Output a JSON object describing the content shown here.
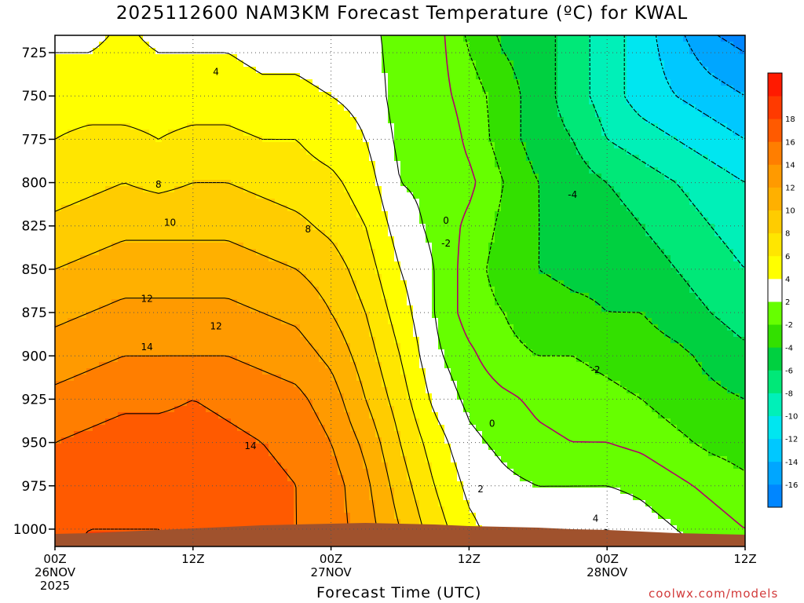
{
  "chart_data": {
    "type": "heatmap",
    "title": "2025112600 NAM3KM Forecast Temperature (ºC) for KWAL",
    "xlabel": "Forecast Time (UTC)",
    "ylabel": "",
    "source": "coolwx.com/models",
    "y_axis": {
      "range": [
        715,
        1010
      ],
      "inverted": true,
      "ticks": [
        725,
        750,
        775,
        800,
        825,
        850,
        875,
        900,
        925,
        950,
        975,
        1000
      ],
      "tick_labels": [
        "725",
        "750",
        "775",
        "800",
        "825",
        "850",
        "875",
        "900",
        "925",
        "950",
        "975",
        "1000"
      ]
    },
    "x_axis": {
      "range_hours": [
        0,
        60
      ],
      "ticks": [
        {
          "hour": 0,
          "line1": "00Z",
          "line2": "26NOV",
          "line3": "2025"
        },
        {
          "hour": 12,
          "line1": "12Z",
          "line2": "",
          "line3": ""
        },
        {
          "hour": 24,
          "line1": "00Z",
          "line2": "27NOV",
          "line3": ""
        },
        {
          "hour": 36,
          "line1": "12Z",
          "line2": "",
          "line3": ""
        },
        {
          "hour": 48,
          "line1": "00Z",
          "line2": "28NOV",
          "line3": ""
        },
        {
          "hour": 60,
          "line1": "12Z",
          "line2": "",
          "line3": ""
        }
      ]
    },
    "colorbar": {
      "levels": [
        -18,
        -16,
        -14,
        -12,
        -10,
        -8,
        -6,
        -4,
        -2,
        2,
        4,
        6,
        8,
        10,
        12,
        14,
        16,
        18,
        20
      ],
      "colors": [
        "#0086ff",
        "#00a6ff",
        "#00c8ff",
        "#00e6f0",
        "#00f0b8",
        "#00e878",
        "#00d040",
        "#33e000",
        "#66ff00",
        "#ffffff",
        "#ffff00",
        "#ffe600",
        "#ffcc00",
        "#ffb000",
        "#ff9a00",
        "#ff7e00",
        "#ff5a00",
        "#ff3a00",
        "#ff1a00"
      ],
      "labels": [
        "-16",
        "-14",
        "-12",
        "-10",
        "-8",
        "-6",
        "-4",
        "-2",
        "2",
        "4",
        "6",
        "8",
        "10",
        "12",
        "14",
        "16",
        "18"
      ]
    },
    "hours": [
      0,
      3,
      6,
      9,
      12,
      15,
      18,
      21,
      24,
      27,
      30,
      33,
      36,
      39,
      42,
      45,
      48,
      51,
      54,
      57,
      60
    ],
    "pressure_levels": [
      725,
      750,
      775,
      800,
      825,
      850,
      875,
      900,
      925,
      950,
      975,
      1000
    ],
    "temperature": [
      [
        4,
        4,
        4.5,
        4,
        4,
        4,
        3.5,
        3.5,
        3,
        3,
        1,
        1,
        -2,
        -4,
        -5,
        -7,
        -9,
        -11,
        -13,
        -15,
        -16
      ],
      [
        5,
        5,
        5,
        5,
        5,
        5,
        4.5,
        4.5,
        4,
        3.5,
        1,
        1,
        -1,
        -3,
        -5,
        -7,
        -9,
        -11,
        -12,
        -13,
        -14
      ],
      [
        6,
        6.5,
        6.5,
        6,
        6.5,
        6.5,
        6,
        6,
        5,
        4,
        1.5,
        2,
        -0.5,
        -3,
        -5,
        -6,
        -8,
        -9,
        -10,
        -11,
        -12
      ],
      [
        7,
        7.5,
        8,
        7.5,
        8,
        8,
        7.5,
        7,
        6.5,
        5,
        2,
        1.5,
        0.5,
        -2,
        -4,
        -5,
        -6,
        -7,
        -8,
        -9,
        -10
      ],
      [
        8.5,
        9,
        9.5,
        9.5,
        9.5,
        9.5,
        9,
        8.5,
        7.5,
        6,
        3,
        1.5,
        -0.5,
        -2.5,
        -4,
        -4.5,
        -5,
        -6,
        -7,
        -8,
        -9
      ],
      [
        10,
        10.5,
        11,
        11,
        11,
        11,
        10.5,
        10,
        9,
        7,
        4,
        2,
        -1,
        -3,
        -4,
        -4.5,
        -4.5,
        -5,
        -6,
        -7,
        -8
      ],
      [
        11.5,
        12,
        12.5,
        12.5,
        12.5,
        12.5,
        12,
        11.5,
        10,
        8,
        5,
        2,
        -1,
        -2,
        -3,
        -3.5,
        -4,
        -4,
        -5,
        -6,
        -7
      ],
      [
        13,
        13.5,
        14,
        14,
        14,
        14,
        13.5,
        13,
        11.5,
        9,
        6,
        2.5,
        0.5,
        -1.5,
        -2,
        -2,
        -2.5,
        -3,
        -3.5,
        -4.5,
        -5.5
      ],
      [
        14.5,
        15,
        15.5,
        15.5,
        16,
        15.5,
        15,
        14.5,
        13,
        10,
        7,
        3.5,
        1.5,
        0.5,
        -0.5,
        -1,
        -1.5,
        -2,
        -3,
        -3.5,
        -4
      ],
      [
        16,
        16.5,
        17,
        17,
        17,
        16.5,
        16,
        15.5,
        14,
        11.5,
        8,
        5,
        2.5,
        1.5,
        0.5,
        0,
        0,
        -0.5,
        -1.5,
        -2.5,
        -3
      ],
      [
        17,
        17.5,
        18,
        17.5,
        17.5,
        17,
        16.5,
        16,
        15,
        12.5,
        9,
        6,
        3.5,
        2.5,
        2,
        2,
        2,
        1.5,
        0.5,
        -0.5,
        -1.5
      ],
      [
        17.5,
        18,
        18,
        18,
        17.5,
        17,
        17,
        16,
        15,
        13,
        10,
        7,
        4.5,
        3,
        3,
        3.5,
        4,
        3,
        2,
        1,
        0
      ]
    ],
    "contour_labels": [
      {
        "text": "4",
        "hour": 14,
        "p": 736
      },
      {
        "text": "8",
        "hour": 9,
        "p": 801
      },
      {
        "text": "8",
        "hour": 22,
        "p": 827
      },
      {
        "text": "10",
        "hour": 10,
        "p": 823
      },
      {
        "text": "12",
        "hour": 8,
        "p": 867
      },
      {
        "text": "12",
        "hour": 14,
        "p": 883
      },
      {
        "text": "14",
        "hour": 8,
        "p": 895
      },
      {
        "text": "14",
        "hour": 17,
        "p": 952
      },
      {
        "text": "0",
        "hour": 34,
        "p": 822
      },
      {
        "text": "-2",
        "hour": 34,
        "p": 835
      },
      {
        "text": "-4",
        "hour": 45,
        "p": 807
      },
      {
        "text": "-2",
        "hour": 47,
        "p": 908
      },
      {
        "text": "0",
        "hour": 38,
        "p": 939
      },
      {
        "text": "2",
        "hour": 37,
        "p": 977
      },
      {
        "text": "4",
        "hour": 47,
        "p": 994
      }
    ]
  }
}
